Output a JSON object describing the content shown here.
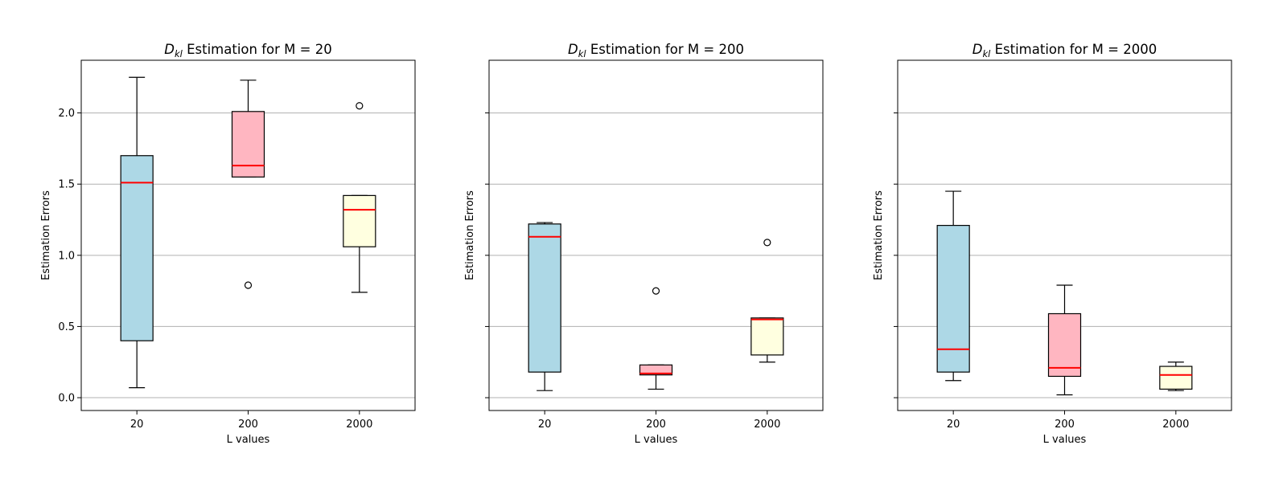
{
  "chart_data": [
    {
      "type": "box",
      "title": "D_kl Estimation for M = 20",
      "title_symbol": "D",
      "title_subscript": "kl",
      "title_rest": " Estimation for M = 20",
      "xlabel": "L values",
      "ylabel": "Estimation Errors",
      "categories": [
        "20",
        "200",
        "2000"
      ],
      "ylim": [
        -0.09,
        2.37
      ],
      "yticks": [
        0.0,
        0.5,
        1.0,
        1.5,
        2.0
      ],
      "ytick_labels": [
        "0.0",
        "0.5",
        "1.0",
        "1.5",
        "2.0"
      ],
      "show_ytick_labels": true,
      "grid": "y",
      "boxes": [
        {
          "category": "20",
          "whisker_low": 0.07,
          "q1": 0.4,
          "median": 1.51,
          "q3": 1.7,
          "whisker_high": 2.25,
          "outliers": [],
          "fill": "#add8e6"
        },
        {
          "category": "200",
          "whisker_low": 1.55,
          "q1": 1.55,
          "median": 1.63,
          "q3": 2.01,
          "whisker_high": 2.23,
          "outliers": [
            0.79
          ],
          "fill": "#ffb6c1"
        },
        {
          "category": "2000",
          "whisker_low": 0.74,
          "q1": 1.06,
          "median": 1.32,
          "q3": 1.42,
          "whisker_high": 1.42,
          "outliers": [
            2.05
          ],
          "fill": "#ffffe0"
        }
      ]
    },
    {
      "type": "box",
      "title": "D_kl Estimation for M = 200",
      "title_symbol": "D",
      "title_subscript": "kl",
      "title_rest": " Estimation for M = 200",
      "xlabel": "L values",
      "ylabel": "Estimation Errors",
      "categories": [
        "20",
        "200",
        "2000"
      ],
      "ylim": [
        -0.09,
        2.37
      ],
      "yticks": [
        0.0,
        0.5,
        1.0,
        1.5,
        2.0
      ],
      "ytick_labels": [
        "",
        "",
        "",
        "",
        ""
      ],
      "show_ytick_labels": false,
      "grid": "y",
      "boxes": [
        {
          "category": "20",
          "whisker_low": 0.05,
          "q1": 0.18,
          "median": 1.13,
          "q3": 1.22,
          "whisker_high": 1.23,
          "outliers": [],
          "fill": "#add8e6"
        },
        {
          "category": "200",
          "whisker_low": 0.06,
          "q1": 0.16,
          "median": 0.17,
          "q3": 0.23,
          "whisker_high": 0.23,
          "outliers": [
            0.75
          ],
          "fill": "#ffb6c1"
        },
        {
          "category": "2000",
          "whisker_low": 0.25,
          "q1": 0.3,
          "median": 0.55,
          "q3": 0.56,
          "whisker_high": 0.56,
          "outliers": [
            1.09
          ],
          "fill": "#ffffe0"
        }
      ]
    },
    {
      "type": "box",
      "title": "D_kl Estimation for M = 2000",
      "title_symbol": "D",
      "title_subscript": "kl",
      "title_rest": " Estimation for M = 2000",
      "xlabel": "L values",
      "ylabel": "Estimation Errors",
      "categories": [
        "20",
        "200",
        "2000"
      ],
      "ylim": [
        -0.09,
        2.37
      ],
      "yticks": [
        0.0,
        0.5,
        1.0,
        1.5,
        2.0
      ],
      "ytick_labels": [
        "",
        "",
        "",
        "",
        ""
      ],
      "show_ytick_labels": false,
      "grid": "y",
      "boxes": [
        {
          "category": "20",
          "whisker_low": 0.12,
          "q1": 0.18,
          "median": 0.34,
          "q3": 1.21,
          "whisker_high": 1.45,
          "outliers": [],
          "fill": "#add8e6"
        },
        {
          "category": "200",
          "whisker_low": 0.02,
          "q1": 0.15,
          "median": 0.21,
          "q3": 0.59,
          "whisker_high": 0.79,
          "outliers": [],
          "fill": "#ffb6c1"
        },
        {
          "category": "2000",
          "whisker_low": 0.05,
          "q1": 0.06,
          "median": 0.16,
          "q3": 0.22,
          "whisker_high": 0.25,
          "outliers": [],
          "fill": "#ffffe0"
        }
      ]
    }
  ],
  "colors": {
    "median": "#ff0000",
    "grid": "#b0b0b0",
    "axis": "#000000"
  }
}
